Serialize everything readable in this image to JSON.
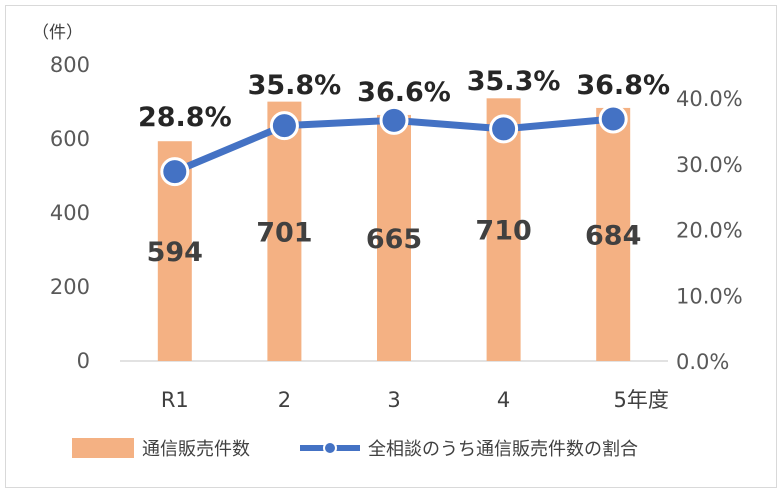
{
  "chart_data": {
    "type": "bar+line",
    "unit_label": "（件）",
    "categories": [
      "R1",
      "2",
      "3",
      "4",
      "5年度"
    ],
    "bar_series": {
      "name": "通信販売件数",
      "values": [
        594,
        701,
        665,
        710,
        684
      ],
      "color": "#f4b183"
    },
    "line_series": {
      "name": "全相談のうち通信販売件数の割合",
      "values": [
        28.8,
        35.8,
        36.6,
        35.3,
        36.8
      ],
      "labels": [
        "28.8%",
        "35.8%",
        "36.6%",
        "35.3%",
        "36.8%"
      ],
      "color": "#4472c4"
    },
    "bar_value_labels": [
      "594",
      "701",
      "665",
      "710",
      "684"
    ],
    "y_left": {
      "min": 0,
      "max": 800,
      "ticks": [
        "0",
        "200",
        "400",
        "600",
        "800"
      ]
    },
    "y_right": {
      "min": 0,
      "max": 40,
      "ticks": [
        "0.0%",
        "10.0%",
        "20.0%",
        "30.0%",
        "40.0%"
      ]
    },
    "grid": false,
    "legend_position": "bottom"
  }
}
